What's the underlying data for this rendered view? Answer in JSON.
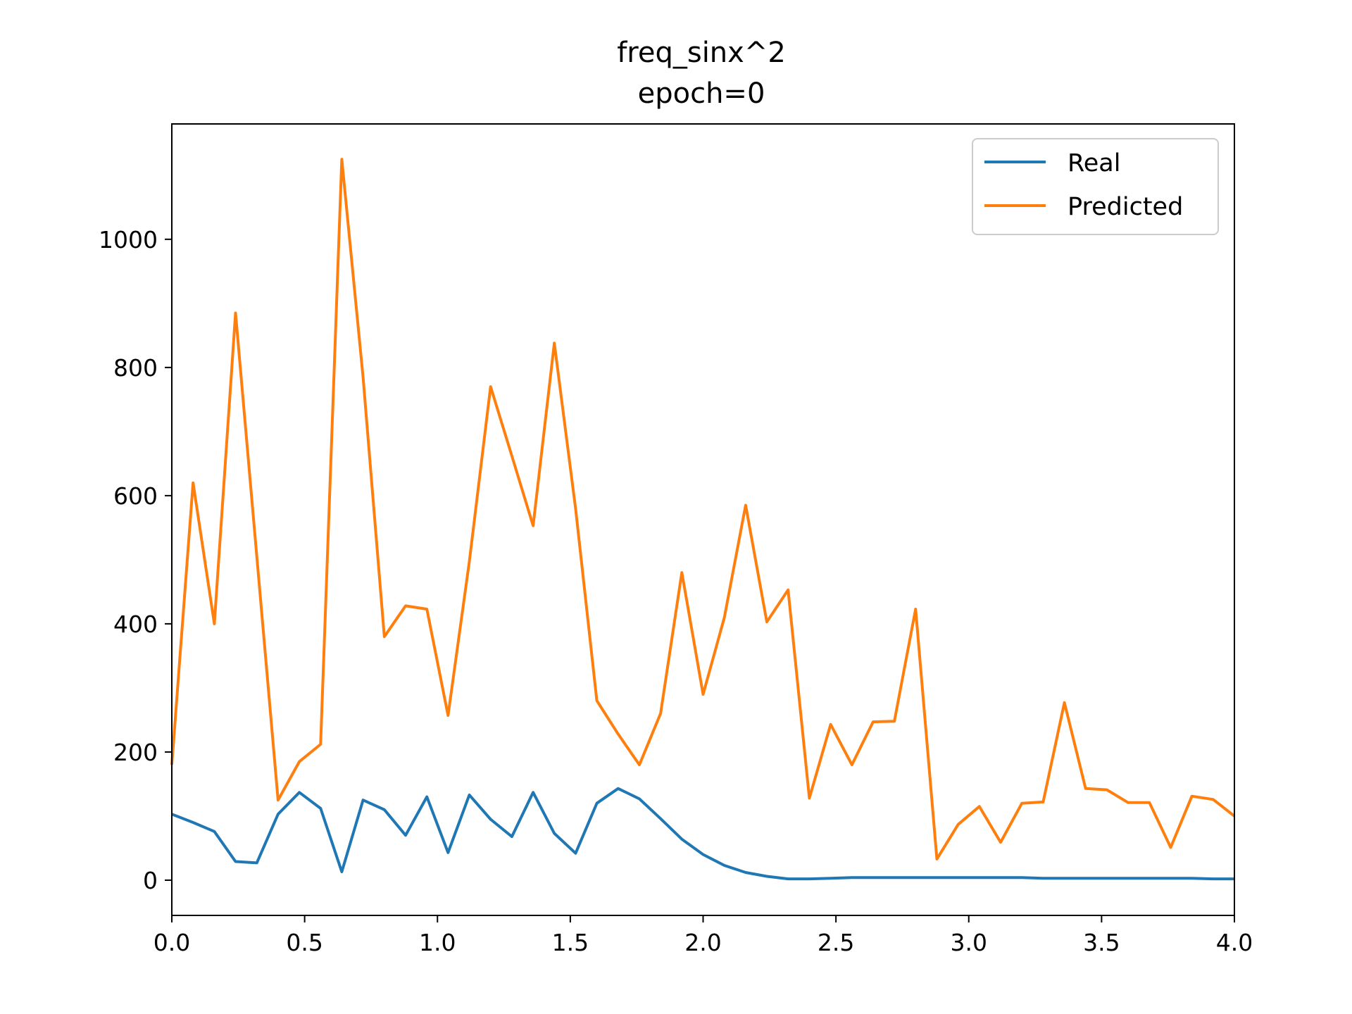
{
  "chart_data": {
    "type": "line",
    "title": "freq_sinx^2",
    "subtitle": "epoch=0",
    "xlabel": "",
    "ylabel": "",
    "xlim": [
      0.0,
      4.0
    ],
    "ylim": [
      -55,
      1180
    ],
    "x_ticks": [
      "0.0",
      "0.5",
      "1.0",
      "1.5",
      "2.0",
      "2.5",
      "3.0",
      "3.5",
      "4.0"
    ],
    "x_tick_values": [
      0.0,
      0.5,
      1.0,
      1.5,
      2.0,
      2.5,
      3.0,
      3.5,
      4.0
    ],
    "y_ticks": [
      "0",
      "200",
      "400",
      "600",
      "800",
      "1000"
    ],
    "y_tick_values": [
      0,
      200,
      400,
      600,
      800,
      1000
    ],
    "grid": false,
    "legend_position": "upper right",
    "x": [
      0.0,
      0.08,
      0.16,
      0.24,
      0.32,
      0.4,
      0.48,
      0.56,
      0.64,
      0.72,
      0.8,
      0.88,
      0.96,
      1.04,
      1.12,
      1.2,
      1.28,
      1.36,
      1.44,
      1.52,
      1.6,
      1.68,
      1.76,
      1.84,
      1.92,
      2.0,
      2.08,
      2.16,
      2.24,
      2.32,
      2.4,
      2.48,
      2.56,
      2.64,
      2.72,
      2.8,
      2.88,
      2.96,
      3.04,
      3.12,
      3.2,
      3.28,
      3.36,
      3.44,
      3.52,
      3.6,
      3.68,
      3.76,
      3.84,
      3.92,
      4.0
    ],
    "series": [
      {
        "name": "Real",
        "color": "#1f77b4",
        "values": [
          103,
          90,
          76,
          29,
          27,
          103,
          137,
          112,
          13,
          125,
          110,
          70,
          130,
          43,
          133,
          95,
          68,
          137,
          73,
          42,
          120,
          143,
          127,
          96,
          64,
          40,
          23,
          12,
          6,
          2,
          2,
          3,
          4,
          4,
          4,
          4,
          4,
          4,
          4,
          4,
          4,
          3,
          3,
          3,
          3,
          3,
          3,
          3,
          3,
          2,
          2
        ]
      },
      {
        "name": "Predicted",
        "color": "#ff7f0e",
        "values": [
          180,
          620,
          400,
          885,
          505,
          125,
          185,
          212,
          1125,
          785,
          380,
          428,
          423,
          257,
          497,
          770,
          662,
          553,
          838,
          580,
          280,
          228,
          180,
          260,
          480,
          290,
          410,
          585,
          403,
          453,
          128,
          243,
          180,
          247,
          248,
          423,
          33,
          87,
          115,
          59,
          120,
          122,
          277,
          143,
          141,
          121,
          121,
          51,
          131,
          126,
          123
        ]
      }
    ],
    "series_x_end_predicted": 100
  }
}
